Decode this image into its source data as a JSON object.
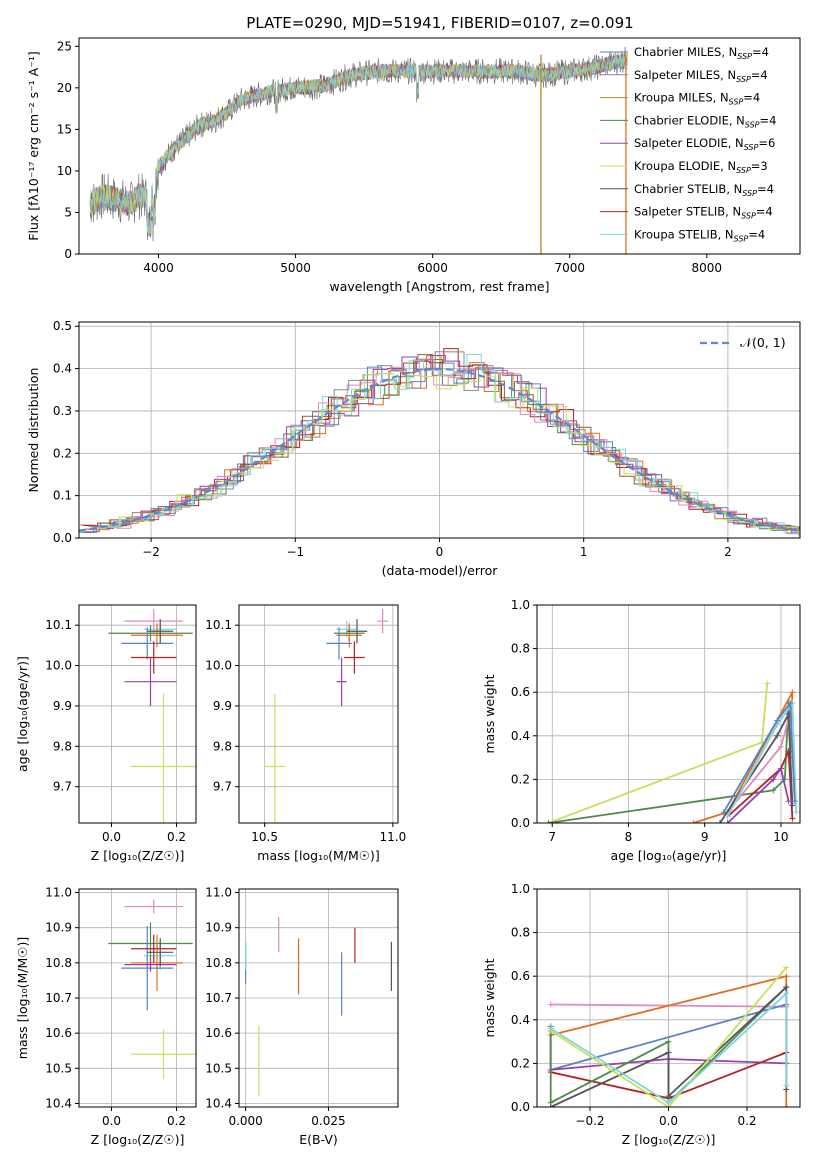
{
  "figure_title": "PLATE=0290, MJD=51941, FIBERID=0107, z=0.091",
  "chart_data": [
    {
      "id": "spectrum",
      "type": "line",
      "title": "PLATE=0290, MJD=51941, FIBERID=0107, z=0.091",
      "xlabel": "wavelength [Angstrom, rest frame]",
      "ylabel": "Flux [fλ10⁻¹⁷ erg cm⁻² s⁻¹ A⁻¹]",
      "xlim": [
        3420,
        8680
      ],
      "ylim": [
        0,
        26
      ],
      "xticks": [
        4000,
        5000,
        6000,
        7000,
        8000
      ],
      "yticks": [
        0,
        5,
        10,
        15,
        20,
        25
      ],
      "x_range_data": [
        3500,
        7420
      ],
      "shape": [
        [
          3500,
          6.0
        ],
        [
          3600,
          7.0
        ],
        [
          3700,
          6.5
        ],
        [
          3800,
          6.0
        ],
        [
          3850,
          7.0
        ],
        [
          3950,
          6.5
        ],
        [
          4000,
          10.5
        ],
        [
          4100,
          12.5
        ],
        [
          4200,
          14.0
        ],
        [
          4300,
          15.5
        ],
        [
          4400,
          16.0
        ],
        [
          4500,
          17.0
        ],
        [
          4600,
          18.5
        ],
        [
          4700,
          19.0
        ],
        [
          4800,
          19.5
        ],
        [
          5000,
          20.0
        ],
        [
          5200,
          20.2
        ],
        [
          5400,
          21.5
        ],
        [
          5600,
          22.0
        ],
        [
          5800,
          22.0
        ],
        [
          6000,
          22.0
        ],
        [
          6200,
          22.0
        ],
        [
          6400,
          22.0
        ],
        [
          6600,
          22.0
        ],
        [
          6800,
          21.5
        ],
        [
          7000,
          22.0
        ],
        [
          7200,
          22.5
        ],
        [
          7420,
          23.5
        ]
      ],
      "legend": [
        {
          "label": "Chabrier MILES, N",
          "sub": "SSP",
          "suffix": "=4",
          "color": "#5a80c8"
        },
        {
          "label": "Salpeter MILES, N",
          "sub": "SSP",
          "suffix": "=4",
          "color": "#8a7ac0"
        },
        {
          "label": "Kroupa MILES, N",
          "sub": "SSP",
          "suffix": "=4",
          "color": "#b08a20"
        },
        {
          "label": "Chabrier ELODIE, N",
          "sub": "SSP",
          "suffix": "=4",
          "color": "#4f8a4f"
        },
        {
          "label": "Salpeter ELODIE, N",
          "sub": "SSP",
          "suffix": "=6",
          "color": "#9a3fb0"
        },
        {
          "label": "Kroupa ELODIE, N",
          "sub": "SSP",
          "suffix": "=3",
          "color": "#d6e05a"
        },
        {
          "label": "Chabrier STELIB, N",
          "sub": "SSP",
          "suffix": "=4",
          "color": "#555555"
        },
        {
          "label": "Salpeter STELIB, N",
          "sub": "SSP",
          "suffix": "=4",
          "color": "#b22222"
        },
        {
          "label": "Kroupa STELIB, N",
          "sub": "SSP",
          "suffix": "=4",
          "color": "#7fd6e0"
        }
      ],
      "vlines": [
        {
          "x": 6790,
          "color": "#b08a20"
        },
        {
          "x": 7410,
          "color": "#e07020"
        }
      ]
    },
    {
      "id": "residuals",
      "type": "line",
      "xlabel": "(data-model)/error",
      "ylabel": "Normed distribution",
      "xlim": [
        -2.5,
        2.5
      ],
      "ylim": [
        0,
        0.51
      ],
      "xticks": [
        -2,
        -1,
        0,
        1,
        2
      ],
      "yticks": [
        0.0,
        0.1,
        0.2,
        0.3,
        0.4,
        0.5
      ],
      "gaussian_label": "𝒩(0, 1)",
      "gaussian_color": "#5a8ad0",
      "bin_width": 0.1,
      "hist_colors": [
        "#5a80c8",
        "#e07020",
        "#4f8a4f",
        "#b22222",
        "#9a3fb0",
        "#8b5a3c",
        "#e088c0",
        "#888888",
        "#c8e05a",
        "#7fd6e0"
      ]
    },
    {
      "id": "z-age",
      "type": "scatter",
      "xlabel": "Z [log₁₀(Z/Z☉)]",
      "ylabel": "age  [log₁₀(age/yr)]",
      "xlim": [
        -0.1,
        0.26
      ],
      "ylim": [
        9.61,
        10.15
      ],
      "xticks": [
        0.0,
        0.2
      ],
      "yticks": [
        9.7,
        9.8,
        9.9,
        10.0,
        10.1
      ],
      "points": [
        {
          "x": 0.13,
          "y": 10.11,
          "xe": 0.09,
          "ye": 0.03,
          "color": "#e088c0"
        },
        {
          "x": 0.15,
          "y": 10.09,
          "xe": 0.05,
          "ye": 0.02,
          "color": "#7fd6e0"
        },
        {
          "x": 0.12,
          "y": 10.08,
          "xe": 0.13,
          "ye": 0.02,
          "color": "#4f8a4f"
        },
        {
          "x": 0.14,
          "y": 10.075,
          "xe": 0.08,
          "ye": 0.03,
          "color": "#e07020"
        },
        {
          "x": 0.11,
          "y": 10.055,
          "xe": 0.08,
          "ye": 0.04,
          "color": "#5a80c8"
        },
        {
          "x": 0.13,
          "y": 10.02,
          "xe": 0.07,
          "ye": 0.04,
          "color": "#b22222"
        },
        {
          "x": 0.12,
          "y": 9.96,
          "xe": 0.08,
          "ye": 0.06,
          "color": "#9a3fb0"
        },
        {
          "x": 0.16,
          "y": 9.75,
          "xe": 0.1,
          "ye": 0.18,
          "color": "#c8e05a"
        },
        {
          "x": 0.15,
          "y": 10.085,
          "xe": 0.04,
          "ye": 0.03,
          "color": "#555555"
        }
      ]
    },
    {
      "id": "mass-age",
      "type": "scatter",
      "xlabel": "mass [log₁₀(M/M☉)]",
      "ylabel": "",
      "xlim": [
        10.4,
        11.02
      ],
      "ylim": [
        9.61,
        10.15
      ],
      "xticks": [
        10.5,
        11.0
      ],
      "yticks": [
        9.7,
        9.8,
        9.9,
        10.0,
        10.1
      ],
      "points": [
        {
          "x": 10.96,
          "y": 10.11,
          "xe": 0.02,
          "ye": 0.03,
          "color": "#e088c0"
        },
        {
          "x": 10.82,
          "y": 10.09,
          "xe": 0.04,
          "ye": 0.02,
          "color": "#7fd6e0"
        },
        {
          "x": 10.83,
          "y": 10.08,
          "xe": 0.06,
          "ye": 0.02,
          "color": "#4f8a4f"
        },
        {
          "x": 10.83,
          "y": 10.075,
          "xe": 0.05,
          "ye": 0.03,
          "color": "#e07020"
        },
        {
          "x": 10.79,
          "y": 10.055,
          "xe": 0.05,
          "ye": 0.04,
          "color": "#5a80c8"
        },
        {
          "x": 10.85,
          "y": 10.02,
          "xe": 0.04,
          "ye": 0.04,
          "color": "#b22222"
        },
        {
          "x": 10.8,
          "y": 9.96,
          "xe": 0.02,
          "ye": 0.06,
          "color": "#9a3fb0"
        },
        {
          "x": 10.54,
          "y": 9.75,
          "xe": 0.04,
          "ye": 0.18,
          "color": "#c8e05a"
        },
        {
          "x": 10.86,
          "y": 10.085,
          "xe": 0.04,
          "ye": 0.03,
          "color": "#555555"
        }
      ]
    },
    {
      "id": "age-weight",
      "type": "line",
      "xlabel": "age  [log₁₀(age/yr)]",
      "ylabel": "mass weight",
      "xlim": [
        6.8,
        10.25
      ],
      "ylim": [
        0,
        1.0
      ],
      "xticks": [
        7,
        8,
        9,
        10
      ],
      "yticks": [
        0.0,
        0.2,
        0.4,
        0.6,
        0.8,
        1.0
      ],
      "series": [
        {
          "color": "#c8e05a",
          "points": [
            [
              6.95,
              0.0
            ],
            [
              9.75,
              0.37
            ],
            [
              9.82,
              0.64
            ]
          ]
        },
        {
          "color": "#4f8a4f",
          "points": [
            [
              6.95,
              0.0
            ],
            [
              9.9,
              0.15
            ],
            [
              10.05,
              0.2
            ],
            [
              10.1,
              0.55
            ]
          ]
        },
        {
          "color": "#e07020",
          "points": [
            [
              8.85,
              0.0
            ],
            [
              9.3,
              0.05
            ],
            [
              10.15,
              0.6
            ],
            [
              10.12,
              0.3
            ]
          ]
        },
        {
          "color": "#b22222",
          "points": [
            [
              9.3,
              0.03
            ],
            [
              10.0,
              0.25
            ],
            [
              10.1,
              0.33
            ],
            [
              10.15,
              0.02
            ]
          ]
        },
        {
          "color": "#9a3fb0",
          "points": [
            [
              9.3,
              0.0
            ],
            [
              9.9,
              0.2
            ],
            [
              10.0,
              0.25
            ],
            [
              10.1,
              0.1
            ]
          ]
        },
        {
          "color": "#e088c0",
          "points": [
            [
              9.3,
              0.05
            ],
            [
              10.0,
              0.35
            ],
            [
              10.12,
              0.5
            ]
          ]
        },
        {
          "color": "#555555",
          "points": [
            [
              9.2,
              0.0
            ],
            [
              9.95,
              0.4
            ],
            [
              10.1,
              0.5
            ],
            [
              10.15,
              0.08
            ]
          ]
        },
        {
          "color": "#7fd6e0",
          "points": [
            [
              9.3,
              0.03
            ],
            [
              9.95,
              0.45
            ],
            [
              10.15,
              0.55
            ],
            [
              10.2,
              0.05
            ]
          ]
        },
        {
          "color": "#5a80c8",
          "points": [
            [
              9.25,
              0.05
            ],
            [
              9.95,
              0.47
            ],
            [
              10.12,
              0.55
            ],
            [
              10.18,
              0.1
            ]
          ]
        }
      ]
    },
    {
      "id": "z-mass",
      "type": "scatter",
      "xlabel": "Z [log₁₀(Z/Z☉)]",
      "ylabel": "mass [log₁₀(M/M☉)]",
      "xlim": [
        -0.1,
        0.26
      ],
      "ylim": [
        10.39,
        11.01
      ],
      "xticks": [
        0.0,
        0.2
      ],
      "yticks": [
        10.4,
        10.5,
        10.6,
        10.7,
        10.8,
        10.9,
        11.0
      ],
      "points": [
        {
          "x": 0.13,
          "y": 10.96,
          "xe": 0.09,
          "ye": 0.02,
          "color": "#e088c0"
        },
        {
          "x": 0.15,
          "y": 10.82,
          "xe": 0.05,
          "ye": 0.04,
          "color": "#7fd6e0"
        },
        {
          "x": 0.12,
          "y": 10.855,
          "xe": 0.13,
          "ye": 0.06,
          "color": "#4f8a4f"
        },
        {
          "x": 0.14,
          "y": 10.8,
          "xe": 0.08,
          "ye": 0.08,
          "color": "#e07020"
        },
        {
          "x": 0.11,
          "y": 10.785,
          "xe": 0.08,
          "ye": 0.12,
          "color": "#5a80c8"
        },
        {
          "x": 0.13,
          "y": 10.84,
          "xe": 0.07,
          "ye": 0.04,
          "color": "#b22222"
        },
        {
          "x": 0.12,
          "y": 10.795,
          "xe": 0.08,
          "ye": 0.02,
          "color": "#9a3fb0"
        },
        {
          "x": 0.16,
          "y": 10.54,
          "xe": 0.1,
          "ye": 0.07,
          "color": "#c8e05a"
        },
        {
          "x": 0.15,
          "y": 10.83,
          "xe": 0.04,
          "ye": 0.04,
          "color": "#555555"
        }
      ]
    },
    {
      "id": "ebv-mass",
      "type": "scatter",
      "xlabel": "E(B-V)",
      "ylabel": "",
      "xlim": [
        -0.002,
        0.046
      ],
      "ylim": [
        10.39,
        11.01
      ],
      "xticks": [
        0.0,
        0.025
      ],
      "xtick_labels": [
        "0.000",
        "0.025"
      ],
      "yticks": [
        10.4,
        10.5,
        10.6,
        10.7,
        10.8,
        10.9,
        11.0
      ],
      "points": [
        {
          "x": 0.0,
          "y": 10.8,
          "ye": 0.06,
          "color": "#5a80c8"
        },
        {
          "x": 0.0,
          "y": 10.82,
          "ye": 0.04,
          "color": "#7fd6e0"
        },
        {
          "x": 0.004,
          "y": 10.52,
          "ye": 0.1,
          "color": "#c8e05a"
        },
        {
          "x": 0.01,
          "y": 10.88,
          "ye": 0.05,
          "color": "#e088c0"
        },
        {
          "x": 0.016,
          "y": 10.79,
          "ye": 0.08,
          "color": "#e07020"
        },
        {
          "x": 0.029,
          "y": 10.74,
          "ye": 0.09,
          "color": "#5a80c8"
        },
        {
          "x": 0.033,
          "y": 10.85,
          "ye": 0.05,
          "color": "#b22222"
        },
        {
          "x": 0.044,
          "y": 10.79,
          "ye": 0.07,
          "color": "#555555"
        }
      ]
    },
    {
      "id": "z-weight",
      "type": "line",
      "xlabel": "Z [log₁₀(Z/Z☉)]",
      "ylabel": "mass weight",
      "xlim": [
        -0.335,
        0.335
      ],
      "ylim": [
        0,
        1.0
      ],
      "xticks": [
        -0.2,
        0.0,
        0.2
      ],
      "yticks": [
        0.0,
        0.2,
        0.4,
        0.6,
        0.8,
        1.0
      ],
      "series": [
        {
          "color": "#e088c0",
          "points": [
            [
              -0.3,
              0.47
            ],
            [
              0.3,
              0.46
            ]
          ]
        },
        {
          "color": "#e07020",
          "points": [
            [
              -0.3,
              0.33
            ],
            [
              0.3,
              0.6
            ],
            [
              0.3,
              0.0
            ]
          ]
        },
        {
          "color": "#5a80c8",
          "points": [
            [
              -0.3,
              0.17
            ],
            [
              0.3,
              0.47
            ]
          ]
        },
        {
          "color": "#9a3fb0",
          "points": [
            [
              -0.3,
              0.17
            ],
            [
              0.0,
              0.22
            ],
            [
              0.3,
              0.2
            ]
          ]
        },
        {
          "color": "#b22222",
          "points": [
            [
              -0.3,
              0.35
            ],
            [
              -0.3,
              0.16
            ],
            [
              0.0,
              0.04
            ],
            [
              0.3,
              0.25
            ]
          ]
        },
        {
          "color": "#4f8a4f",
          "points": [
            [
              -0.3,
              0.37
            ],
            [
              -0.3,
              0.02
            ],
            [
              0.0,
              0.3
            ],
            [
              0.0,
              0.02
            ],
            [
              0.3,
              0.55
            ]
          ]
        },
        {
          "color": "#555555",
          "points": [
            [
              -0.3,
              0.0
            ],
            [
              0.0,
              0.25
            ],
            [
              0.0,
              0.05
            ],
            [
              0.3,
              0.55
            ],
            [
              0.3,
              0.08
            ]
          ]
        },
        {
          "color": "#c8e05a",
          "points": [
            [
              -0.3,
              0.35
            ],
            [
              0.0,
              0.0
            ],
            [
              0.3,
              0.64
            ]
          ]
        },
        {
          "color": "#7fd6e0",
          "points": [
            [
              -0.3,
              0.36
            ],
            [
              0.0,
              0.02
            ],
            [
              0.3,
              0.52
            ],
            [
              0.3,
              0.1
            ]
          ]
        }
      ]
    }
  ]
}
